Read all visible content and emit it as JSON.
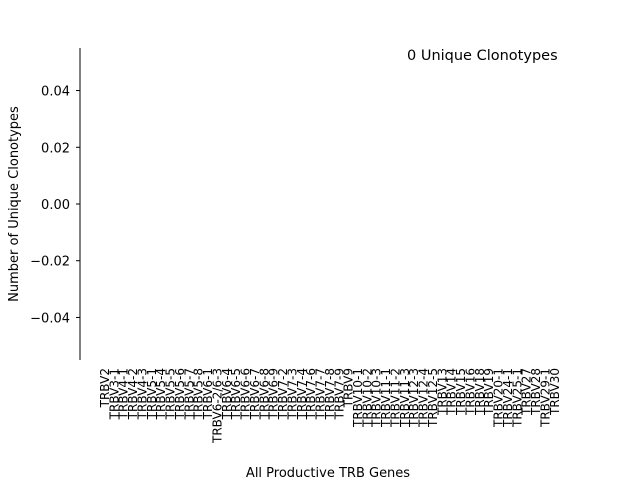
{
  "chart_data": {
    "type": "bar",
    "annotation": "0 Unique Clonotypes",
    "xlabel": "All Productive TRB Genes",
    "ylabel": "Number of Unique Clonotypes",
    "ylim": [
      -0.055,
      0.055
    ],
    "yticks": [
      0.04,
      0.02,
      0.0,
      -0.02,
      -0.04
    ],
    "ytick_labels": [
      "0.04",
      "0.02",
      "0.00",
      "−0.02",
      "−0.04"
    ],
    "categories": [
      "TRBV2",
      "TRBV3-1",
      "TRBV4-1",
      "TRBV4-2",
      "TRBV4-3",
      "TRBV5-1",
      "TRBV5-4",
      "TRBV5-5",
      "TRBV5-6",
      "TRBV5-7",
      "TRBV5-8",
      "TRBV6-1",
      "TRBV6-2/6-3",
      "TRBV6-4",
      "TRBV6-5",
      "TRBV6-6",
      "TRBV6-7",
      "TRBV6-8",
      "TRBV6-9",
      "TRBV7-2",
      "TRBV7-3",
      "TRBV7-4",
      "TRBV7-6",
      "TRBV7-7",
      "TRBV7-8",
      "TRBV7-9",
      "TRBV9",
      "TRBV10-1",
      "TRBV10-2",
      "TRBV10-3",
      "TRBV11-1",
      "TRBV11-2",
      "TRBV11-3",
      "TRBV12-3",
      "TRBV12-4",
      "TRBV12-5",
      "TRBV13",
      "TRBV14",
      "TRBV15",
      "TRBV16",
      "TRBV18",
      "TRBV19",
      "TRBV20-1",
      "TRBV24-1",
      "TRBV25-1",
      "TRBV27",
      "TRBV28",
      "TRBV29-1",
      "TRBV30"
    ],
    "values": [
      0,
      0,
      0,
      0,
      0,
      0,
      0,
      0,
      0,
      0,
      0,
      0,
      0,
      0,
      0,
      0,
      0,
      0,
      0,
      0,
      0,
      0,
      0,
      0,
      0,
      0,
      0,
      0,
      0,
      0,
      0,
      0,
      0,
      0,
      0,
      0,
      0,
      0,
      0,
      0,
      0,
      0,
      0,
      0,
      0,
      0,
      0,
      0,
      0
    ],
    "grid": false,
    "legend": "none"
  }
}
